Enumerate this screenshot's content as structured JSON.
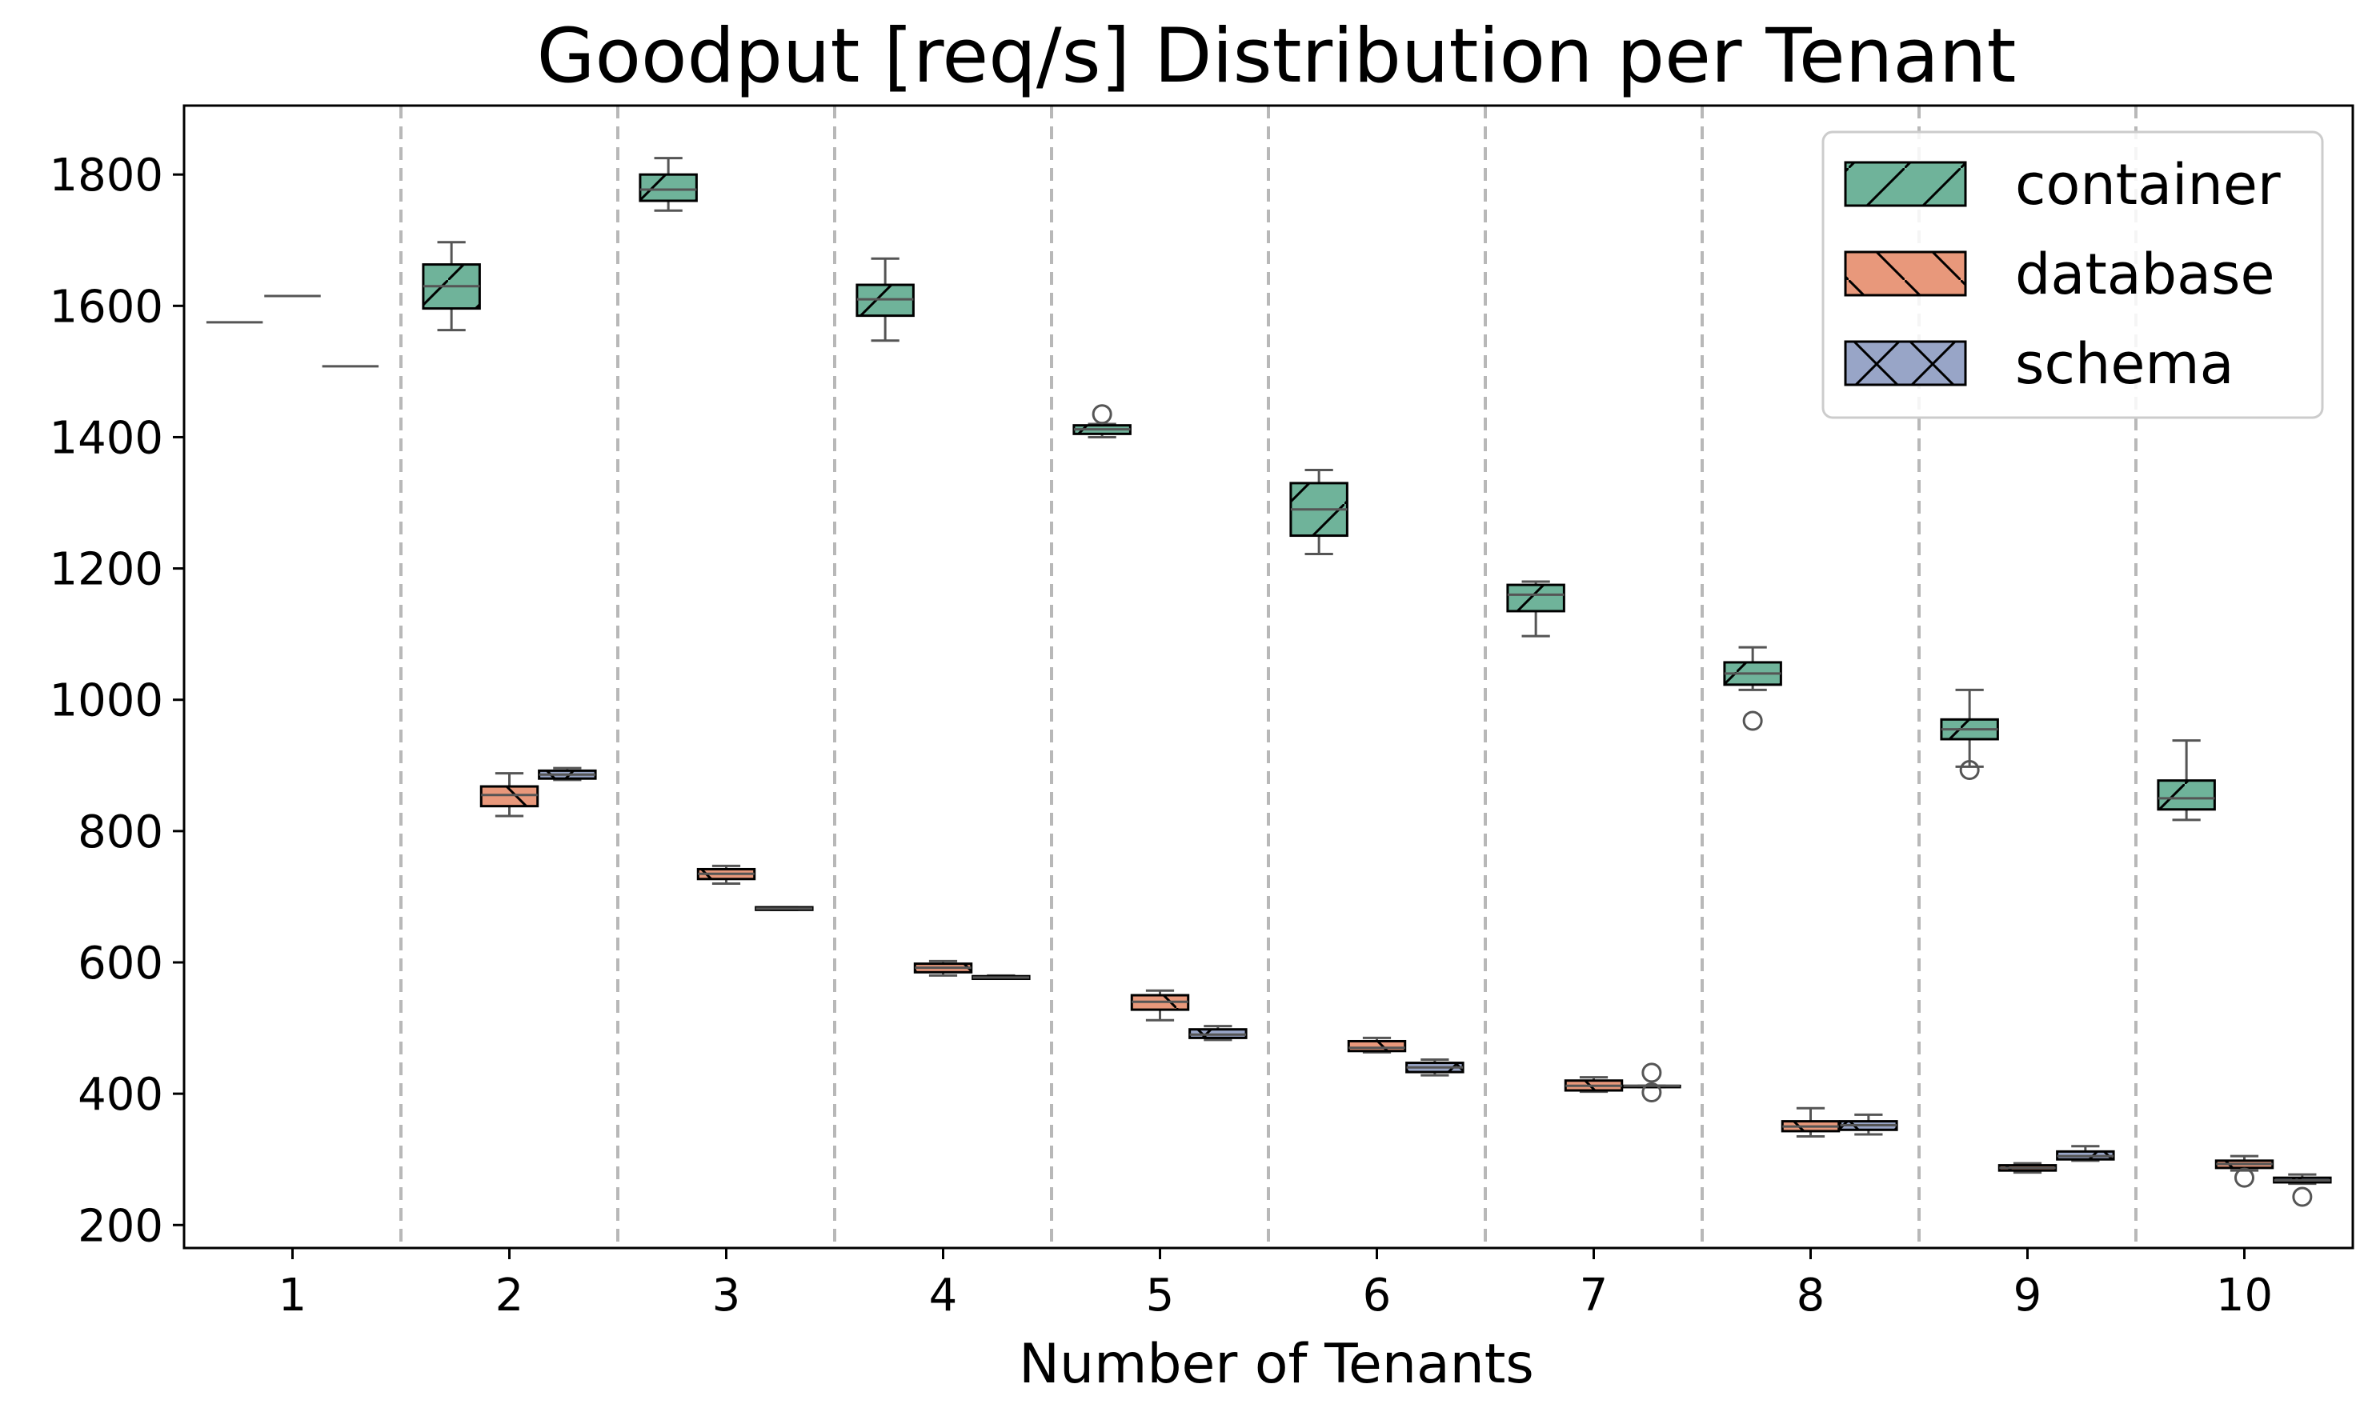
{
  "chart_data": {
    "type": "box",
    "title": "Goodput [req/s] Distribution per Tenant",
    "xlabel": "Number of Tenants",
    "ylabel": "",
    "categories": [
      "1",
      "2",
      "3",
      "4",
      "5",
      "6",
      "7",
      "8",
      "9",
      "10"
    ],
    "yticks": [
      "200",
      "400",
      "600",
      "800",
      "1000",
      "1200",
      "1400",
      "1600",
      "1800"
    ],
    "ylim": [
      165,
      1905
    ],
    "grid": "dashed vertical separators between groups",
    "legend_position": "top-right",
    "series": [
      {
        "name": "container",
        "color": "#6fb39a",
        "hatch": "slash",
        "boxes": [
          {
            "category": "1",
            "min": 1575,
            "q1": 1575,
            "median": 1575,
            "q3": 1575,
            "max": 1575,
            "outliers": []
          },
          {
            "category": "2",
            "min": 1563,
            "q1": 1596,
            "median": 1630,
            "q3": 1663,
            "max": 1697,
            "outliers": []
          },
          {
            "category": "3",
            "min": 1745,
            "q1": 1760,
            "median": 1777,
            "q3": 1800,
            "max": 1825,
            "outliers": []
          },
          {
            "category": "4",
            "min": 1547,
            "q1": 1585,
            "median": 1610,
            "q3": 1632,
            "max": 1672,
            "outliers": []
          },
          {
            "category": "5",
            "min": 1400,
            "q1": 1405,
            "median": 1412,
            "q3": 1418,
            "max": 1420,
            "outliers": [
              1435
            ]
          },
          {
            "category": "6",
            "min": 1222,
            "q1": 1250,
            "median": 1290,
            "q3": 1330,
            "max": 1350,
            "outliers": []
          },
          {
            "category": "7",
            "min": 1097,
            "q1": 1135,
            "median": 1160,
            "q3": 1175,
            "max": 1180,
            "outliers": []
          },
          {
            "category": "8",
            "min": 1015,
            "q1": 1023,
            "median": 1040,
            "q3": 1057,
            "max": 1080,
            "outliers": [
              968
            ]
          },
          {
            "category": "9",
            "min": 898,
            "q1": 940,
            "median": 955,
            "q3": 970,
            "max": 1015,
            "outliers": [
              893
            ]
          },
          {
            "category": "10",
            "min": 817,
            "q1": 833,
            "median": 850,
            "q3": 877,
            "max": 938,
            "outliers": []
          }
        ]
      },
      {
        "name": "database",
        "color": "#e8987b",
        "hatch": "backslash",
        "boxes": [
          {
            "category": "1",
            "min": 1615,
            "q1": 1615,
            "median": 1615,
            "q3": 1615,
            "max": 1615,
            "outliers": []
          },
          {
            "category": "2",
            "min": 823,
            "q1": 838,
            "median": 855,
            "q3": 868,
            "max": 888,
            "outliers": []
          },
          {
            "category": "3",
            "min": 720,
            "q1": 727,
            "median": 735,
            "q3": 742,
            "max": 747,
            "outliers": []
          },
          {
            "category": "4",
            "min": 580,
            "q1": 585,
            "median": 592,
            "q3": 598,
            "max": 602,
            "outliers": []
          },
          {
            "category": "5",
            "min": 512,
            "q1": 528,
            "median": 540,
            "q3": 550,
            "max": 557,
            "outliers": []
          },
          {
            "category": "6",
            "min": 463,
            "q1": 465,
            "median": 470,
            "q3": 480,
            "max": 485,
            "outliers": []
          },
          {
            "category": "7",
            "min": 403,
            "q1": 405,
            "median": 412,
            "q3": 420,
            "max": 425,
            "outliers": []
          },
          {
            "category": "8",
            "min": 335,
            "q1": 343,
            "median": 350,
            "q3": 358,
            "max": 378,
            "outliers": []
          },
          {
            "category": "9",
            "min": 280,
            "q1": 283,
            "median": 287,
            "q3": 291,
            "max": 294,
            "outliers": []
          },
          {
            "category": "10",
            "min": 283,
            "q1": 287,
            "median": 293,
            "q3": 298,
            "max": 305,
            "outliers": [
              272
            ]
          }
        ]
      },
      {
        "name": "schema",
        "color": "#98a5c7",
        "hatch": "cross",
        "boxes": [
          {
            "category": "1",
            "min": 1508,
            "q1": 1508,
            "median": 1508,
            "q3": 1508,
            "max": 1508,
            "outliers": []
          },
          {
            "category": "2",
            "min": 878,
            "q1": 880,
            "median": 886,
            "q3": 892,
            "max": 896,
            "outliers": []
          },
          {
            "category": "3",
            "min": 680,
            "q1": 680,
            "median": 682,
            "q3": 684,
            "max": 684,
            "outliers": []
          },
          {
            "category": "4",
            "min": 575,
            "q1": 575,
            "median": 577,
            "q3": 579,
            "max": 580,
            "outliers": []
          },
          {
            "category": "5",
            "min": 482,
            "q1": 485,
            "median": 490,
            "q3": 498,
            "max": 503,
            "outliers": []
          },
          {
            "category": "6",
            "min": 428,
            "q1": 433,
            "median": 440,
            "q3": 447,
            "max": 452,
            "outliers": []
          },
          {
            "category": "7",
            "min": 410,
            "q1": 410,
            "median": 412,
            "q3": 412,
            "max": 412,
            "outliers": [
              432,
              402
            ]
          },
          {
            "category": "8",
            "min": 338,
            "q1": 345,
            "median": 352,
            "q3": 358,
            "max": 368,
            "outliers": []
          },
          {
            "category": "9",
            "min": 298,
            "q1": 300,
            "median": 305,
            "q3": 312,
            "max": 320,
            "outliers": []
          },
          {
            "category": "10",
            "min": 263,
            "q1": 265,
            "median": 268,
            "q3": 272,
            "max": 277,
            "outliers": [
              243
            ]
          }
        ]
      }
    ]
  }
}
